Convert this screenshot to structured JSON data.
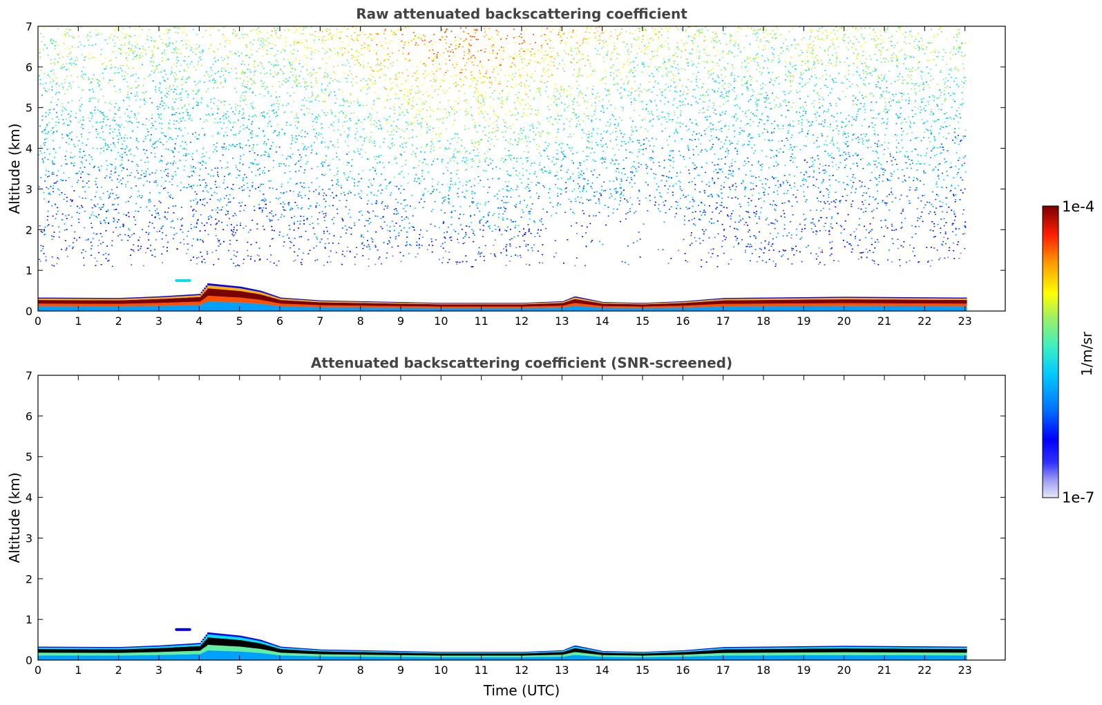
{
  "chart_data": [
    {
      "type": "heatmap",
      "title": "Raw attenuated backscattering coefficient",
      "xlabel": "",
      "ylabel": "Altitude (km)",
      "xlim": [
        0,
        24
      ],
      "ylim": [
        0,
        7
      ],
      "xticks": [
        0,
        1,
        2,
        3,
        4,
        5,
        6,
        7,
        8,
        9,
        10,
        11,
        12,
        13,
        14,
        15,
        16,
        17,
        18,
        19,
        20,
        21,
        22,
        23
      ],
      "yticks": [
        0,
        1,
        2,
        3,
        4,
        5,
        6,
        7
      ],
      "data_end_x": 23,
      "features": {
        "boundary_layer_top_km": [
          {
            "x": 0,
            "y": 0.33
          },
          {
            "x": 2,
            "y": 0.32
          },
          {
            "x": 3,
            "y": 0.36
          },
          {
            "x": 4,
            "y": 0.42
          },
          {
            "x": 4.2,
            "y": 0.68
          },
          {
            "x": 5,
            "y": 0.6
          },
          {
            "x": 5.5,
            "y": 0.5
          },
          {
            "x": 6,
            "y": 0.33
          },
          {
            "x": 7,
            "y": 0.26
          },
          {
            "x": 8,
            "y": 0.24
          },
          {
            "x": 10,
            "y": 0.2
          },
          {
            "x": 12,
            "y": 0.2
          },
          {
            "x": 13,
            "y": 0.24
          },
          {
            "x": 13.3,
            "y": 0.36
          },
          {
            "x": 14,
            "y": 0.22
          },
          {
            "x": 15,
            "y": 0.2
          },
          {
            "x": 16,
            "y": 0.24
          },
          {
            "x": 17,
            "y": 0.32
          },
          {
            "x": 20,
            "y": 0.35
          },
          {
            "x": 23,
            "y": 0.33
          }
        ],
        "isolated_layer": {
          "x": [
            3.4,
            3.8
          ],
          "y": 0.75
        },
        "noise_region_bottom_km": 1.1
      }
    },
    {
      "type": "heatmap",
      "title": "Attenuated backscattering coefficient (SNR-screened)",
      "xlabel": "Time (UTC)",
      "ylabel": "Altitude (km)",
      "xlim": [
        0,
        24
      ],
      "ylim": [
        0,
        7
      ],
      "xticks": [
        0,
        1,
        2,
        3,
        4,
        5,
        6,
        7,
        8,
        9,
        10,
        11,
        12,
        13,
        14,
        15,
        16,
        17,
        18,
        19,
        20,
        21,
        22,
        23
      ],
      "yticks": [
        0,
        1,
        2,
        3,
        4,
        5,
        6,
        7
      ],
      "data_end_x": 23
    }
  ],
  "colorbar": {
    "label": "1/m/sr",
    "max_label": "1e-4",
    "min_label": "1e-7",
    "colors": [
      "#e8e8f8",
      "#b4b4f0",
      "#7878f0",
      "#0000ff",
      "#0050ff",
      "#00a0ff",
      "#00e0f0",
      "#60f0a0",
      "#b0f050",
      "#ffff00",
      "#ffb000",
      "#ff5000",
      "#e00000",
      "#7a0000"
    ]
  }
}
